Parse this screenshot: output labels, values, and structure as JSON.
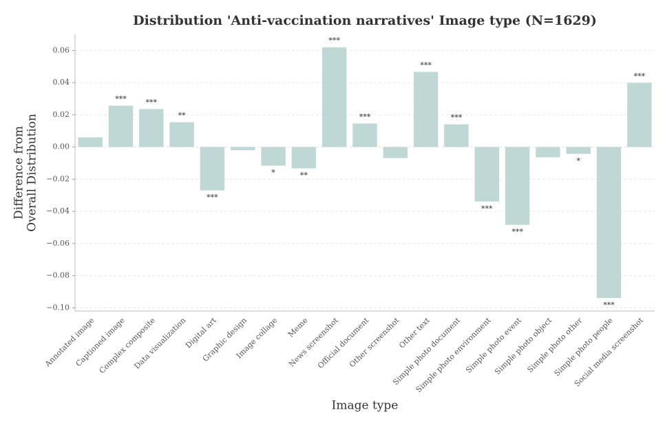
{
  "chart_data": {
    "type": "bar",
    "title": "Distribution 'Anti-vaccination narratives' Image type (N=1629)",
    "xlabel": "Image type",
    "ylabel": [
      "Difference from",
      "Overall Distribution"
    ],
    "categories": [
      "Annotated image",
      "Captioned image",
      "Complex composite",
      "Data visualization",
      "Digital art",
      "Graphic design",
      "Image collage",
      "Meme",
      "News screenshot",
      "Official document",
      "Other screenshot",
      "Other text",
      "Simple photo document",
      "Simple photo environment",
      "Simple photo event",
      "Simple photo object",
      "Simple photo other",
      "Simple photo people",
      "Social media screenshot"
    ],
    "values": [
      0.006,
      0.0257,
      0.0236,
      0.0154,
      -0.027,
      -0.002,
      -0.0116,
      -0.0133,
      0.062,
      0.0146,
      -0.0069,
      0.0467,
      0.0141,
      -0.0339,
      -0.0484,
      -0.0064,
      -0.0043,
      -0.0939,
      0.0399
    ],
    "significance": [
      null,
      "***",
      "***",
      "**",
      "***",
      null,
      "*",
      "**",
      "***",
      "***",
      null,
      "***",
      "***",
      "***",
      "***",
      null,
      "*",
      "***",
      "***"
    ],
    "color": "#bfd8d5",
    "ylim": [
      -0.102,
      0.07
    ],
    "yticks": [
      {
        "value": -0.1,
        "label": "−0.10"
      },
      {
        "value": -0.08,
        "label": "−0.08"
      },
      {
        "value": -0.06,
        "label": "−0.06"
      },
      {
        "value": -0.04,
        "label": "−0.04"
      },
      {
        "value": -0.02,
        "label": "−0.02"
      },
      {
        "value": 0,
        "label": "0.00"
      },
      {
        "value": 0.02,
        "label": "0.02"
      },
      {
        "value": 0.04,
        "label": "0.04"
      },
      {
        "value": 0.06,
        "label": "0.06"
      }
    ],
    "grid": true
  }
}
